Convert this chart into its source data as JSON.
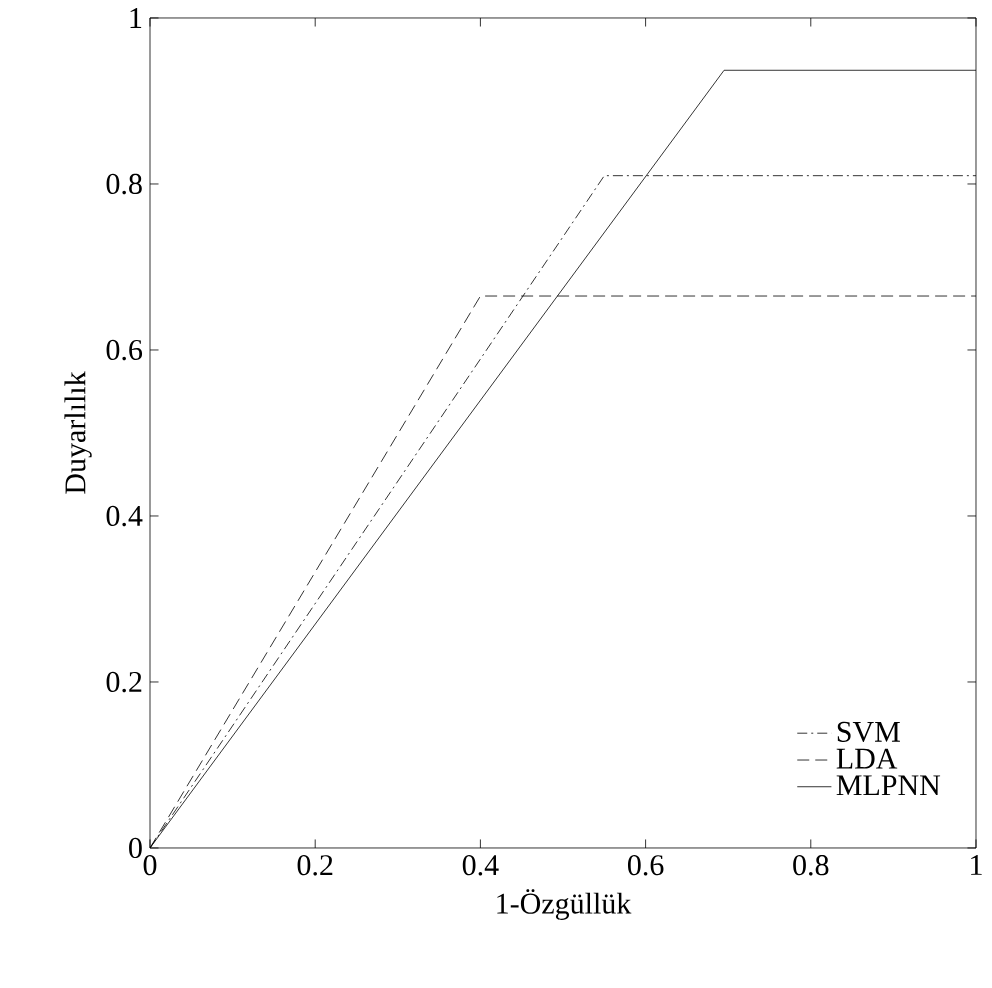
{
  "chart_data": {
    "type": "line",
    "xlabel": "1-Özgüllük",
    "ylabel": "Duyarlılık",
    "xlim": [
      0,
      1
    ],
    "ylim": [
      0,
      1
    ],
    "xticks": [
      0,
      0.2,
      0.4,
      0.6,
      0.8,
      1
    ],
    "yticks": [
      0,
      0.2,
      0.4,
      0.6,
      0.8,
      1
    ],
    "legend": "bottom right",
    "grid": false,
    "marker": "none",
    "series": [
      {
        "name": "SVM",
        "color": "#000000",
        "line_style": "dashdot",
        "x": [
          0,
          0.55,
          1
        ],
        "values": [
          0,
          0.81,
          0.81
        ]
      },
      {
        "name": "LDA",
        "color": "#000000",
        "line_style": "dashed",
        "x": [
          0,
          0.4,
          1
        ],
        "values": [
          0,
          0.665,
          0.665
        ]
      },
      {
        "name": "MLPNN",
        "color": "#000000",
        "line_style": "solid",
        "x": [
          0,
          0.695,
          1
        ],
        "values": [
          0,
          0.937,
          0.937
        ]
      }
    ]
  }
}
